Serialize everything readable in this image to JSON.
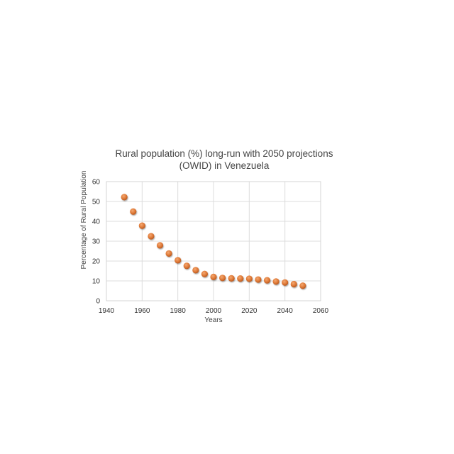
{
  "chart_data": {
    "type": "scatter",
    "title_lines": [
      "Rural population (%) long-run with 2050 projections",
      "(OWID) in Venezuela"
    ],
    "xlabel": "Years",
    "ylabel": "Percentage of Rural Population",
    "xlim": [
      1940,
      2060
    ],
    "ylim": [
      0,
      60
    ],
    "x_ticks": [
      1940,
      1960,
      1980,
      2000,
      2020,
      2040,
      2060
    ],
    "y_ticks": [
      0,
      10,
      20,
      30,
      40,
      50,
      60
    ],
    "grid": true,
    "legend": "none",
    "marker_color": "#e07b39",
    "x": [
      1950,
      1955,
      1960,
      1965,
      1970,
      1975,
      1980,
      1985,
      1990,
      1995,
      2000,
      2005,
      2010,
      2015,
      2020,
      2025,
      2030,
      2035,
      2040,
      2045,
      2050
    ],
    "y": [
      52.2,
      44.9,
      37.8,
      32.5,
      27.9,
      23.8,
      20.4,
      17.6,
      15.4,
      13.5,
      12.0,
      11.5,
      11.3,
      11.2,
      11.1,
      10.7,
      10.3,
      9.7,
      9.2,
      8.4,
      7.6
    ]
  }
}
